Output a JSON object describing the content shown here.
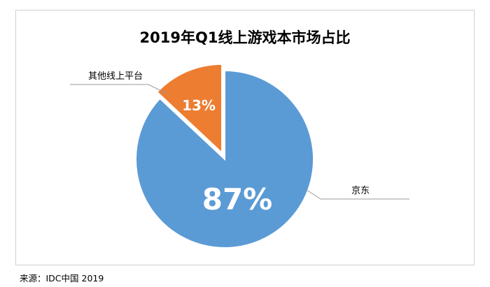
{
  "chart_data": {
    "type": "pie",
    "title": "2019年Q1线上游戏本市场占比",
    "slices": [
      {
        "label": "京东",
        "value": 87,
        "display": "87%",
        "color": "#5b9bd5"
      },
      {
        "label": "其他线上平台",
        "value": 13,
        "display": "13%",
        "color": "#ed7d31"
      }
    ],
    "exploded_slice": "其他线上平台",
    "legend": "none (leader-line callouts)"
  },
  "source": "来源：IDC中国 2019"
}
